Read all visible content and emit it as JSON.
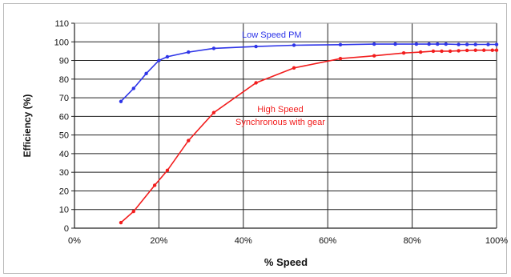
{
  "chart_data": {
    "type": "line",
    "title": "",
    "xlabel": "% Speed",
    "ylabel": "Efficiency (%)",
    "xlim": [
      0,
      100
    ],
    "ylim": [
      0,
      110
    ],
    "x_ticks": [
      "0%",
      "20%",
      "40%",
      "60%",
      "80%",
      "100%"
    ],
    "y_ticks": [
      "0",
      "10",
      "20",
      "30",
      "40",
      "50",
      "60",
      "70",
      "80",
      "90",
      "100",
      "110"
    ],
    "grid": true,
    "series": [
      {
        "name": "Low Speed PM",
        "color": "#2e35e8",
        "x": [
          11,
          14,
          17,
          20,
          22,
          27,
          33,
          43,
          52,
          63,
          71,
          76,
          81,
          84,
          86,
          88,
          91,
          93,
          95,
          98,
          100
        ],
        "y": [
          68,
          75,
          83,
          90,
          92,
          94.5,
          96.5,
          97.5,
          98.2,
          98.5,
          98.8,
          98.8,
          98.8,
          98.8,
          98.8,
          98.8,
          98.6,
          98.6,
          98.6,
          98.6,
          98.6
        ]
      },
      {
        "name": "High Speed Synchronous with gear",
        "color": "#f21d1d",
        "x": [
          11,
          14,
          19,
          22,
          27,
          33,
          43,
          52,
          63,
          71,
          78,
          82,
          85,
          87,
          89,
          91,
          93,
          95,
          97,
          99,
          100
        ],
        "y": [
          3,
          9,
          23,
          31,
          47,
          62,
          78,
          86,
          91,
          92.5,
          94,
          94.5,
          95,
          95,
          95,
          95.2,
          95.4,
          95.5,
          95.5,
          95.5,
          95.5
        ]
      }
    ],
    "annotations": [
      {
        "text": "Low Speed PM",
        "color": "#2e35e8"
      },
      {
        "text": "High Speed",
        "color": "#f21d1d"
      },
      {
        "text": "Synchronous with gear",
        "color": "#f21d1d"
      }
    ]
  }
}
